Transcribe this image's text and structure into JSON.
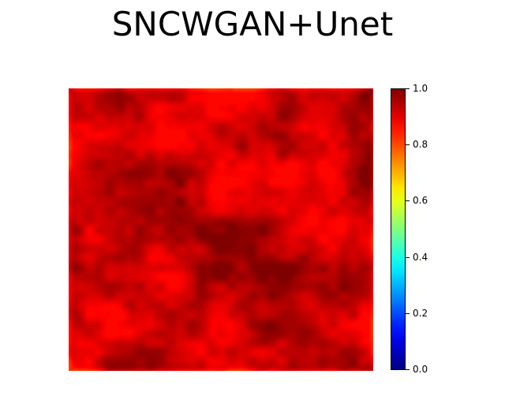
{
  "chart_data": {
    "type": "heatmap",
    "title": "SNCWGAN+Unet",
    "colormap": "jet",
    "vmin": 0.0,
    "vmax": 1.0,
    "colorbar_ticks": [
      "0.0",
      "0.2",
      "0.4",
      "0.6",
      "0.8",
      "1.0"
    ],
    "colorbar_tick_values": [
      0.0,
      0.2,
      0.4,
      0.6,
      0.8,
      1.0
    ],
    "value_range_observed": [
      0.87,
      1.0
    ],
    "axes_visible": false
  }
}
